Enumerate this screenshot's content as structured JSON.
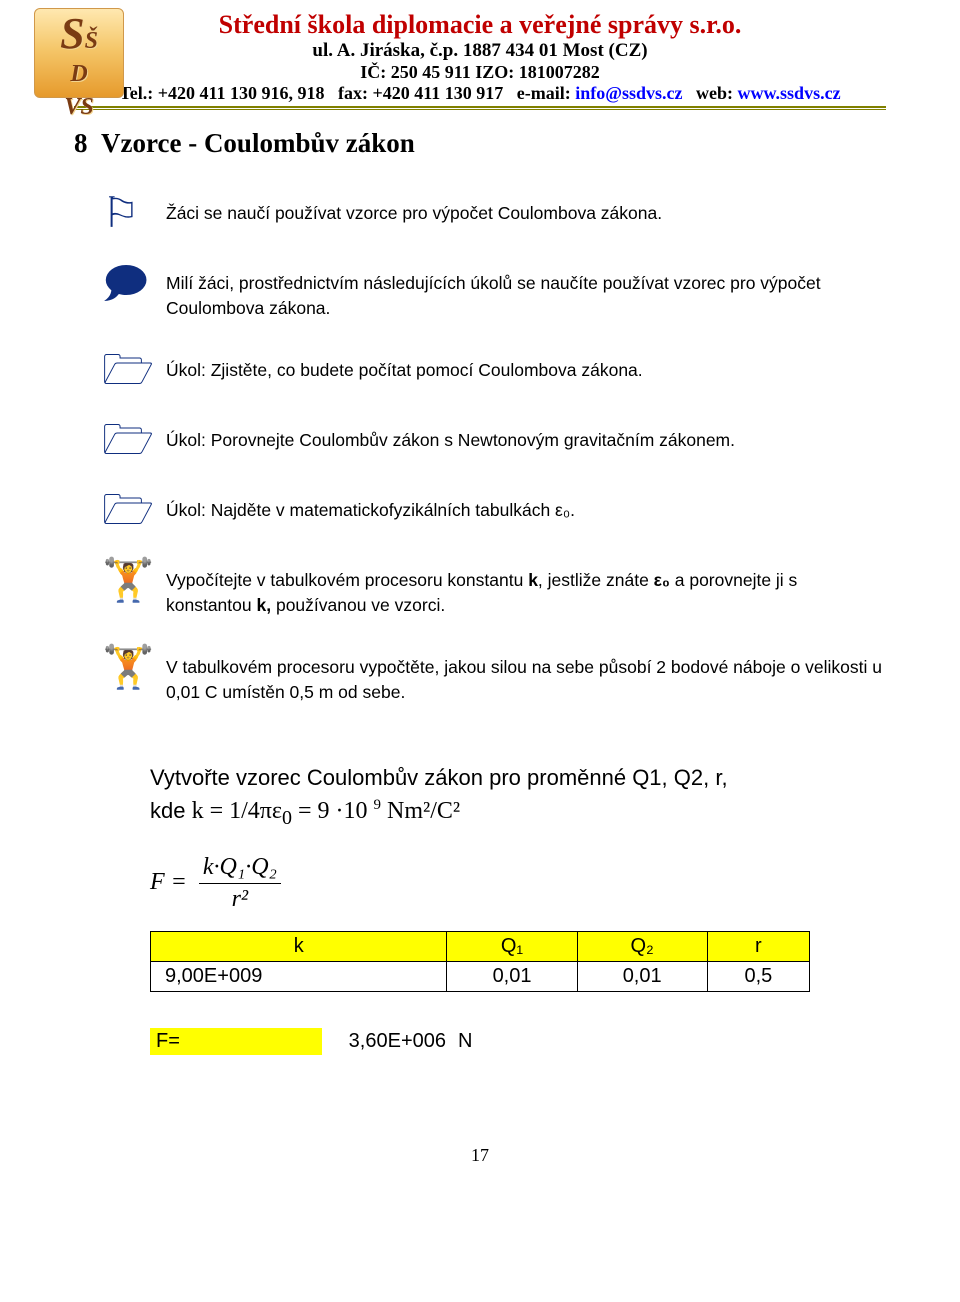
{
  "header": {
    "title": "Střední škola diplomacie a veřejné správy  s.r.o.",
    "address": "ul.  A. Jiráska, č.p. 1887   434 01   Most  (CZ)",
    "ids": "IČ: 250 45 911    IZO: 181007282",
    "tel_label": "Tel.:",
    "tel": "+420 411 130 916, 918",
    "fax_label": "fax:",
    "fax": "+420 411 130 917",
    "email_label": "e-mail:",
    "email": "info@ssdvs.cz",
    "web_label": "web:",
    "web": "www.ssdvs.cz",
    "logo_top": "S",
    "logo_mid": "Š",
    "logo_mid2": "D",
    "logo_bot": "VS",
    "rule_color": "#808000"
  },
  "section": {
    "number": "8",
    "title": "Vzorce - Coulombův zákon"
  },
  "items": [
    {
      "icon": "⚐",
      "text": "Žáci se naučí používat vzorce pro výpočet Coulombova zákona."
    },
    {
      "icon": "🗩",
      "text": "Milí žáci, prostřednictvím následujících úkolů se naučíte používat vzorec pro výpočet Coulombova zákona."
    },
    {
      "icon": "🗁",
      "text": "Úkol: Zjistěte, co budete počítat pomocí Coulombova zákona."
    },
    {
      "icon": "🗁",
      "text": "Úkol: Porovnejte Coulombův zákon s Newtonovým gravitačním zákonem."
    },
    {
      "icon": "🗁",
      "text": "Úkol: Najděte v matematickofyzikálních tabulkách ε₀."
    },
    {
      "icon": "🏋",
      "text_html": "Vypočítejte v tabulkovém procesoru konstantu <b>k</b>, jestliže znáte <b>ε₀</b> a porovnejte ji s konstantou <b>k,</b> používanou ve vzorci."
    },
    {
      "icon": "🏋",
      "text": "V tabulkovém procesoru vypočtěte, jakou silou na sebe působí 2 bodové náboje o velikosti u 0,01 C umístěn 0,5 m od sebe."
    }
  ],
  "formula": {
    "line1": "Vytvořte vzorec Coulombův zákon pro proměnné Q1, Q2, r,",
    "line2_prefix": "kde ",
    "k_expr": "k = 1/4πε",
    "k_sub": "0",
    "k_eq": " = 9 ·10",
    "k_exp": "9",
    "k_units": " Nm²/C²",
    "frac_lhs": "F =",
    "frac_num": "k·Q₁·Q₂",
    "frac_den": "r²"
  },
  "table": {
    "headers": [
      "k",
      "Q₁",
      "Q₂",
      "r"
    ],
    "row": [
      "9,00E+009",
      "0,01",
      "0,01",
      "0,5"
    ],
    "header_bg": "#ffff00"
  },
  "result": {
    "label": "F=",
    "value": "3,60E+006",
    "unit": "N",
    "bg": "#ffff00"
  },
  "page_number": "17",
  "colors": {
    "title": "#c00000",
    "link": "#0000ff",
    "icon": "#0f2e7f",
    "highlight": "#ffff00"
  }
}
